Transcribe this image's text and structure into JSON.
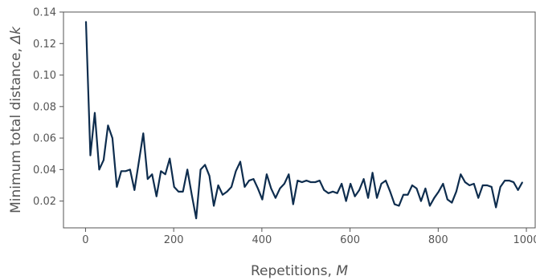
{
  "chart_data": {
    "type": "line",
    "xlabel": "Repetitions, ",
    "xlabel_var": "M",
    "ylabel": "Minimum total distance, ",
    "ylabel_var": "Δk",
    "xlim": [
      -50,
      1020
    ],
    "ylim": [
      0.003,
      0.14
    ],
    "xticks": [
      0,
      200,
      400,
      600,
      800,
      1000
    ],
    "xtick_labels": [
      "0",
      "200",
      "400",
      "600",
      "800",
      "1000"
    ],
    "yticks": [
      0.02,
      0.04,
      0.06,
      0.08,
      0.1,
      0.12,
      0.14
    ],
    "ytick_labels": [
      "0.02",
      "0.04",
      "0.06",
      "0.08",
      "0.10",
      "0.12",
      "0.14"
    ],
    "grid": false,
    "line_color": "#0e2d4e",
    "series": [
      {
        "x": [
          1,
          11,
          21,
          31,
          41,
          51,
          61,
          71,
          81,
          91,
          101,
          111,
          121,
          131,
          141,
          151,
          161,
          171,
          181,
          191,
          201,
          211,
          221,
          231,
          241,
          251,
          261,
          271,
          281,
          291,
          301,
          311,
          321,
          331,
          341,
          351,
          361,
          371,
          381,
          391,
          401,
          411,
          421,
          431,
          441,
          451,
          461,
          471,
          481,
          491,
          501,
          511,
          521,
          531,
          541,
          551,
          561,
          571,
          581,
          591,
          601,
          611,
          621,
          631,
          641,
          651,
          661,
          671,
          681,
          691,
          701,
          711,
          721,
          731,
          741,
          751,
          761,
          771,
          781,
          791,
          801,
          811,
          821,
          831,
          841,
          851,
          861,
          871,
          881,
          891,
          901,
          911,
          921,
          931,
          941,
          951,
          961,
          971,
          981,
          991
        ],
        "y": [
          0.134,
          0.049,
          0.076,
          0.04,
          0.046,
          0.068,
          0.06,
          0.029,
          0.039,
          0.039,
          0.04,
          0.027,
          0.045,
          0.063,
          0.034,
          0.037,
          0.023,
          0.039,
          0.037,
          0.047,
          0.029,
          0.026,
          0.026,
          0.04,
          0.024,
          0.009,
          0.04,
          0.043,
          0.036,
          0.017,
          0.03,
          0.024,
          0.026,
          0.029,
          0.039,
          0.045,
          0.029,
          0.033,
          0.034,
          0.028,
          0.021,
          0.037,
          0.028,
          0.022,
          0.028,
          0.031,
          0.037,
          0.018,
          0.033,
          0.032,
          0.033,
          0.032,
          0.032,
          0.033,
          0.027,
          0.025,
          0.026,
          0.025,
          0.031,
          0.02,
          0.031,
          0.023,
          0.027,
          0.034,
          0.022,
          0.038,
          0.022,
          0.031,
          0.033,
          0.026,
          0.018,
          0.017,
          0.024,
          0.024,
          0.03,
          0.028,
          0.02,
          0.028,
          0.017,
          0.022,
          0.026,
          0.031,
          0.021,
          0.019,
          0.026,
          0.037,
          0.032,
          0.03,
          0.031,
          0.022,
          0.03,
          0.03,
          0.029,
          0.016,
          0.029,
          0.033,
          0.033,
          0.032,
          0.027,
          0.032
        ]
      }
    ]
  }
}
